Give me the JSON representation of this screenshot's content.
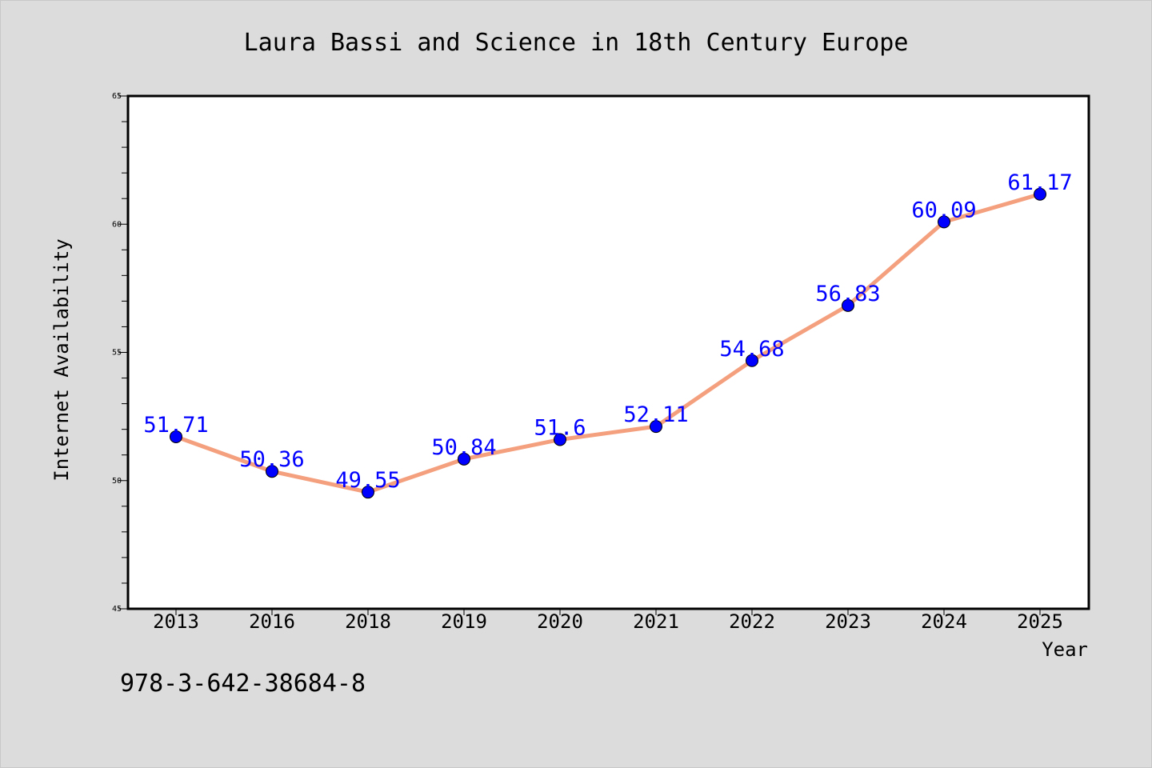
{
  "chart_data": {
    "type": "line",
    "title": "Laura Bassi and Science in 18th Century Europe",
    "xlabel": "Year",
    "ylabel": "Internet Availability",
    "categories": [
      "2013",
      "2016",
      "2018",
      "2019",
      "2020",
      "2021",
      "2022",
      "2023",
      "2024",
      "2025"
    ],
    "values": [
      51.71,
      50.36,
      49.55,
      50.84,
      51.6,
      52.11,
      54.68,
      56.83,
      60.09,
      61.17
    ],
    "data_labels": [
      "51.71",
      "50.36",
      "49.55",
      "50.84",
      "51.6",
      "52.11",
      "54.68",
      "56.83",
      "60.09",
      "61.17"
    ],
    "ylim": [
      45,
      65
    ],
    "yticks": [
      45,
      50,
      55,
      60,
      65
    ],
    "grid": false,
    "legend": "none",
    "line_color": "#f4a07e",
    "marker_color": "#0000ff",
    "label_color": "#0000ff",
    "background_color": "#dcdcdc",
    "plot_background": "#ffffff"
  },
  "annotation": "978-3-642-38684-8"
}
